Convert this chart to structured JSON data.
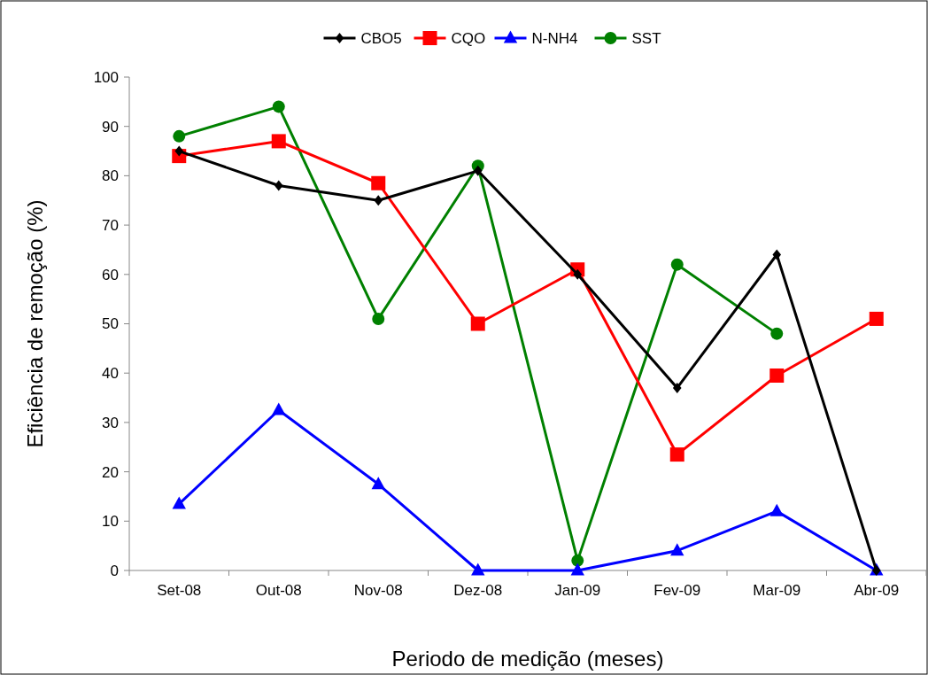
{
  "chart_data": {
    "type": "line",
    "xlabel": "Periodo de medição (meses)",
    "ylabel": "Eficiência de remoção (%)",
    "categories": [
      "Set-08",
      "Out-08",
      "Nov-08",
      "Dez-08",
      "Jan-09",
      "Fev-09",
      "Mar-09",
      "Abr-09"
    ],
    "ylim": [
      0,
      100
    ],
    "yticks": [
      0,
      10,
      20,
      30,
      40,
      50,
      60,
      70,
      80,
      90,
      100
    ],
    "grid": false,
    "legend": "top",
    "series": [
      {
        "name": "CBO5",
        "color": "#000000",
        "marker": "diamond",
        "values": [
          85,
          78,
          75,
          81,
          60,
          37,
          64,
          0
        ]
      },
      {
        "name": "CQO",
        "color": "#ff0000",
        "marker": "square",
        "values": [
          84,
          87,
          78.5,
          50,
          61,
          23.5,
          39.5,
          51
        ]
      },
      {
        "name": "N-NH4",
        "color": "#0000ff",
        "marker": "triangle",
        "values": [
          13.5,
          32.5,
          17.5,
          0,
          0,
          4,
          12,
          0
        ]
      },
      {
        "name": "SST",
        "color": "#008000",
        "marker": "circle",
        "values": [
          88,
          94,
          51,
          82,
          2,
          62,
          48,
          null
        ]
      }
    ]
  }
}
